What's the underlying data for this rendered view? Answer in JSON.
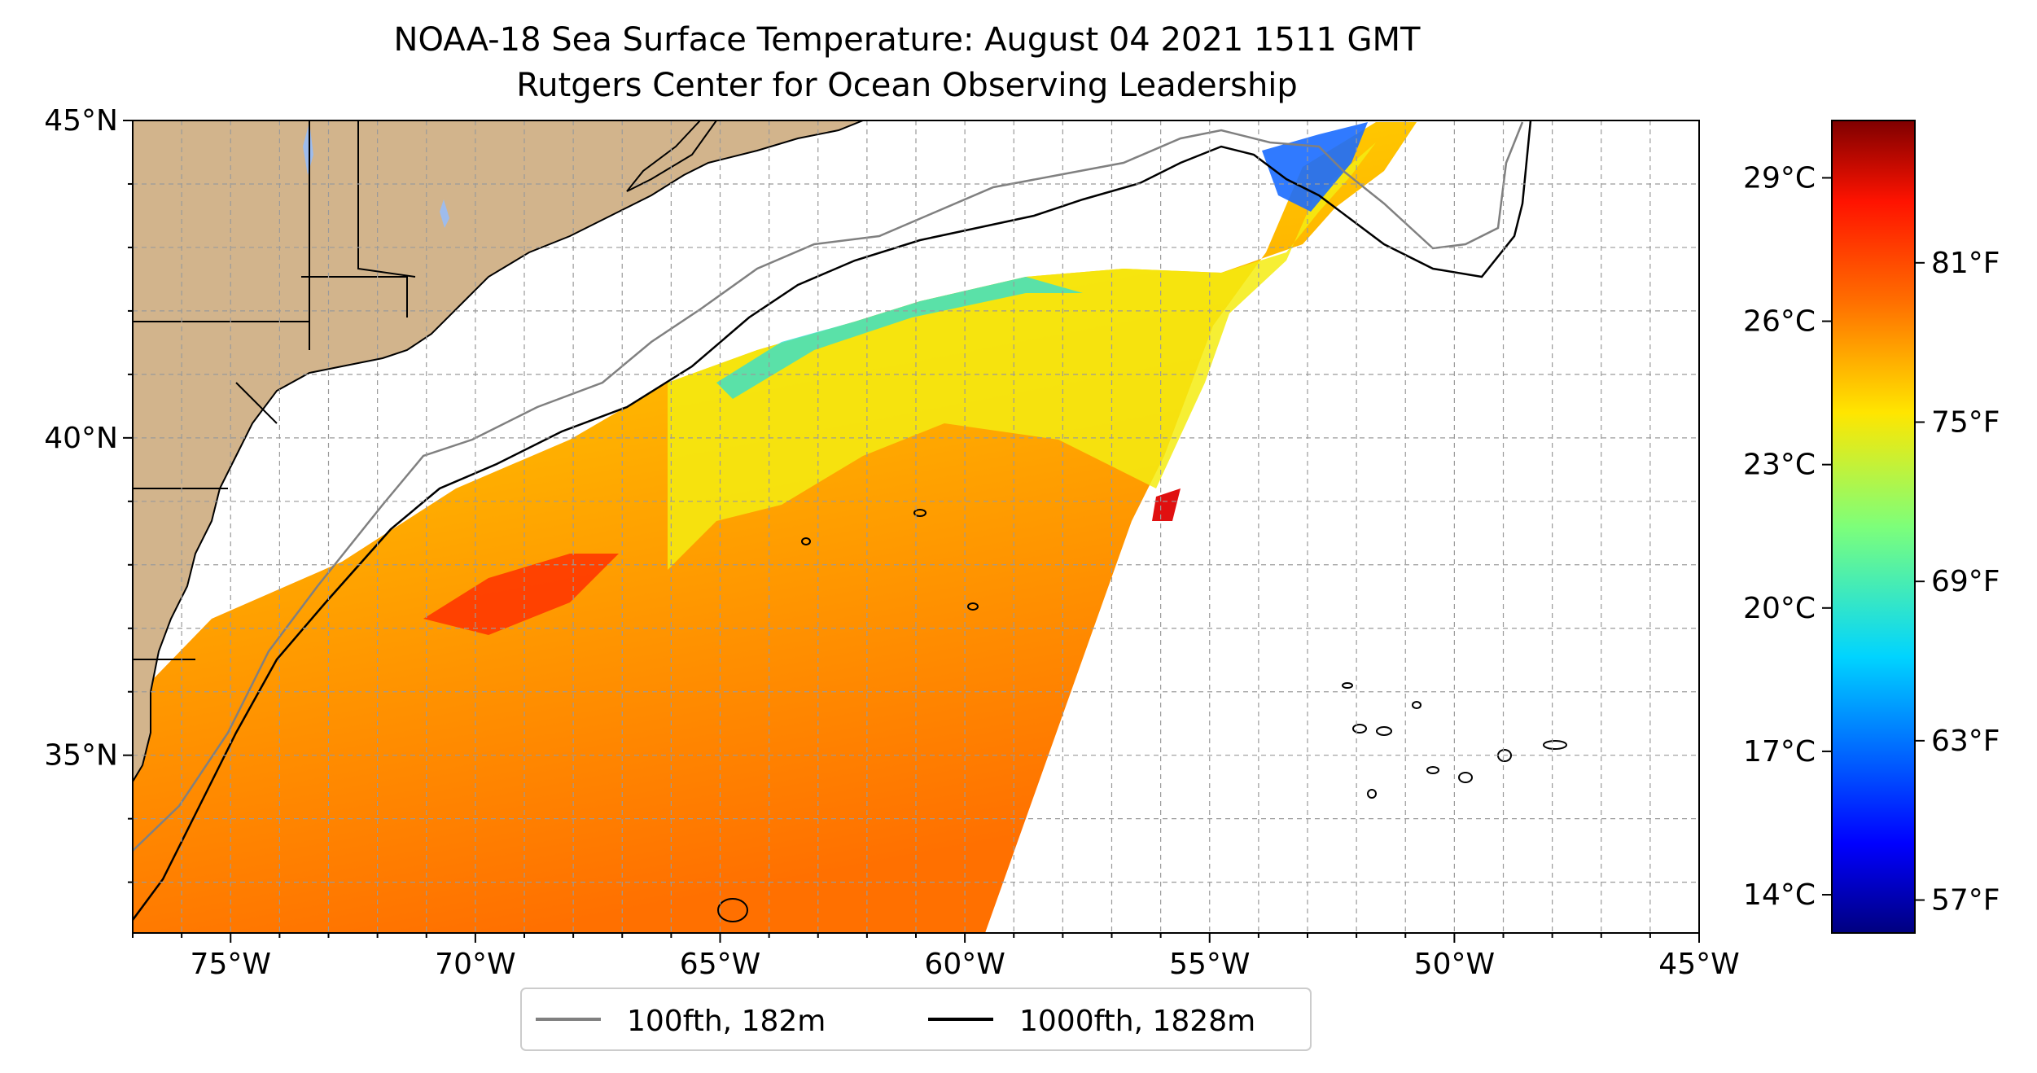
{
  "title": {
    "line1": "NOAA-18 Sea Surface Temperature: August 04 2021 1511 GMT",
    "line2": "Rutgers Center for Ocean Observing Leadership"
  },
  "map": {
    "lon_range": [
      -77,
      -45
    ],
    "lat_range": [
      32.2,
      45
    ],
    "x_ticks": [
      {
        "lon": -75,
        "label": "75°W"
      },
      {
        "lon": -70,
        "label": "70°W"
      },
      {
        "lon": -65,
        "label": "65°W"
      },
      {
        "lon": -60,
        "label": "60°W"
      },
      {
        "lon": -55,
        "label": "55°W"
      },
      {
        "lon": -50,
        "label": "50°W"
      },
      {
        "lon": -45,
        "label": "45°W"
      }
    ],
    "y_ticks": [
      {
        "lat": 45,
        "label": "45°N"
      },
      {
        "lat": 40,
        "label": "40°N"
      },
      {
        "lat": 35,
        "label": "35°N"
      }
    ],
    "land_color": "#d2b48c",
    "lake_color": "#9ebcec",
    "grid": true
  },
  "legend": {
    "location": "below-center",
    "items": [
      {
        "label": "100fth, 182m",
        "color": "#808080"
      },
      {
        "label": "1000fth, 1828m",
        "color": "#000000"
      }
    ]
  },
  "colorbar": {
    "colormap": "jet",
    "celsius_ticks": [
      {
        "value": 14,
        "label": "14°C"
      },
      {
        "value": 17,
        "label": "17°C"
      },
      {
        "value": 20,
        "label": "20°C"
      },
      {
        "value": 23,
        "label": "23°C"
      },
      {
        "value": 26,
        "label": "26°C"
      },
      {
        "value": 29,
        "label": "29°C"
      }
    ],
    "fahrenheit_ticks": [
      {
        "value": 57,
        "label": "57°F"
      },
      {
        "value": 63,
        "label": "63°F"
      },
      {
        "value": 69,
        "label": "69°F"
      },
      {
        "value": 75,
        "label": "75°F"
      },
      {
        "value": 81,
        "label": "81°F"
      }
    ]
  }
}
